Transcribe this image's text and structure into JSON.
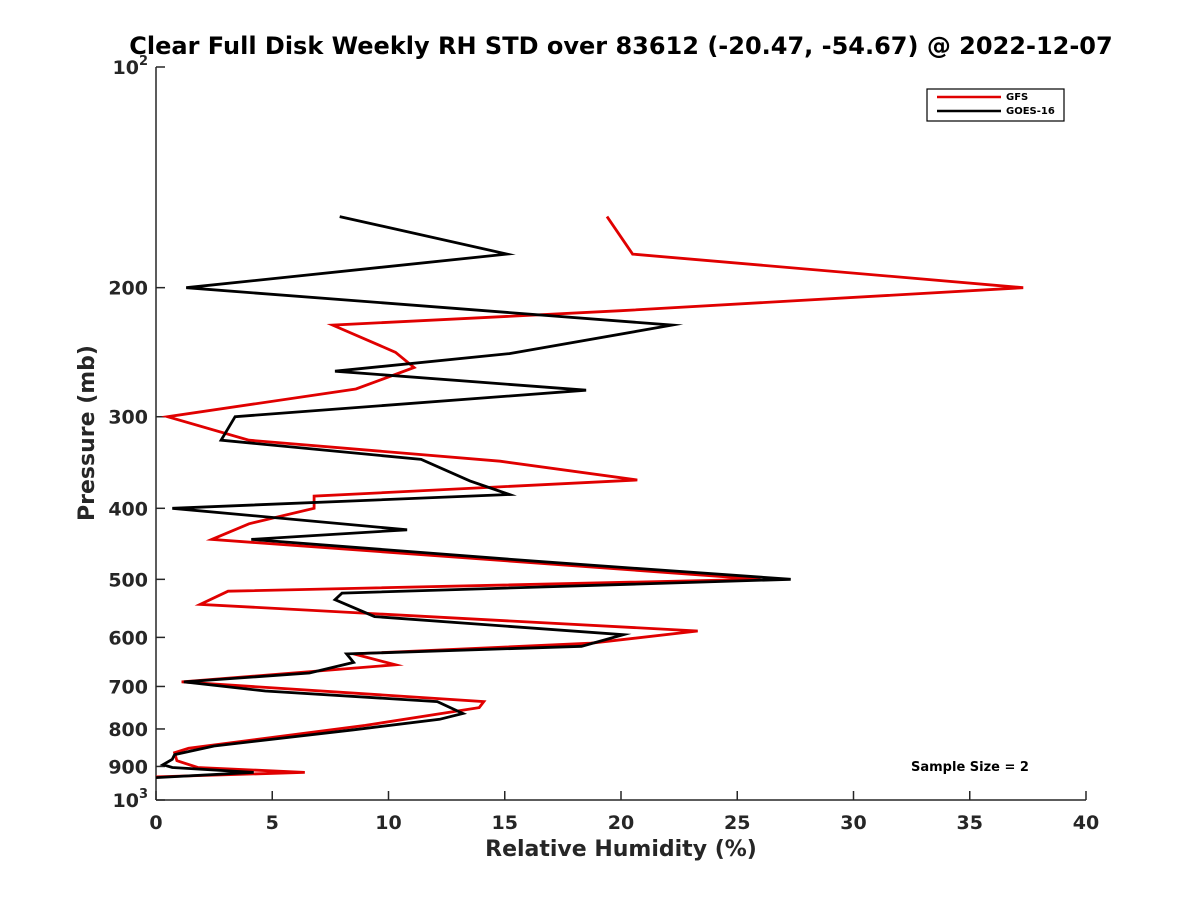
{
  "chart_data": {
    "type": "line",
    "title": "Clear Full Disk Weekly RH STD over 83612 (-20.47, -54.67) @ 2022-12-07",
    "xlabel": "Relative Humidity (%)",
    "ylabel": "Pressure (mb)",
    "xlim": [
      0,
      40
    ],
    "ylim": [
      100,
      1000
    ],
    "yscale": "log",
    "yreversed": true,
    "x_ticks": [
      "0",
      "5",
      "10",
      "15",
      "20",
      "25",
      "30",
      "35",
      "40"
    ],
    "y_ticks": [
      {
        "value": 100,
        "base": "10",
        "exp": "2"
      },
      {
        "value": 200,
        "label": "200"
      },
      {
        "value": 300,
        "label": "300"
      },
      {
        "value": 400,
        "label": "400"
      },
      {
        "value": 500,
        "label": "500"
      },
      {
        "value": 600,
        "label": "600"
      },
      {
        "value": 700,
        "label": "700"
      },
      {
        "value": 800,
        "label": "800"
      },
      {
        "value": 900,
        "label": "900"
      },
      {
        "value": 1000,
        "base": "10",
        "exp": "3"
      }
    ],
    "grid": false,
    "legend_position": "top-right",
    "annotation": "Sample Size = 2",
    "series": [
      {
        "name": "GFS",
        "color": "#e00000",
        "points": [
          [
            19.4,
            160
          ],
          [
            20.5,
            180
          ],
          [
            37.3,
            200
          ],
          [
            20.0,
            215
          ],
          [
            7.6,
            225
          ],
          [
            10.3,
            245
          ],
          [
            11.1,
            257
          ],
          [
            8.6,
            275
          ],
          [
            0.5,
            300
          ],
          [
            4.0,
            323
          ],
          [
            14.8,
            345
          ],
          [
            20.7,
            366
          ],
          [
            6.8,
            385
          ],
          [
            6.8,
            400
          ],
          [
            4.0,
            420
          ],
          [
            2.4,
            441
          ],
          [
            26.0,
            500
          ],
          [
            3.1,
            519
          ],
          [
            1.9,
            541
          ],
          [
            23.3,
            588
          ],
          [
            18.7,
            611
          ],
          [
            8.5,
            632
          ],
          [
            10.3,
            654
          ],
          [
            1.1,
            690
          ],
          [
            14.1,
            734
          ],
          [
            13.9,
            748
          ],
          [
            9.0,
            791
          ],
          [
            1.4,
            850
          ],
          [
            0.8,
            862
          ],
          [
            0.9,
            884
          ],
          [
            1.8,
            903
          ],
          [
            6.4,
            917
          ],
          [
            0.0,
            930
          ]
        ]
      },
      {
        "name": "GOES-16",
        "color": "#000000",
        "points": [
          [
            7.9,
            160
          ],
          [
            15.1,
            180
          ],
          [
            1.3,
            200
          ],
          [
            22.2,
            225
          ],
          [
            15.2,
            246
          ],
          [
            7.7,
            260
          ],
          [
            18.5,
            276
          ],
          [
            3.4,
            300
          ],
          [
            2.8,
            323
          ],
          [
            11.4,
            343
          ],
          [
            13.5,
            367
          ],
          [
            15.2,
            383
          ],
          [
            0.7,
            400
          ],
          [
            10.8,
            428
          ],
          [
            4.1,
            441
          ],
          [
            16.6,
            473
          ],
          [
            27.3,
            500
          ],
          [
            8.0,
            522
          ],
          [
            7.7,
            533
          ],
          [
            9.4,
            562
          ],
          [
            20.1,
            595
          ],
          [
            18.3,
            617
          ],
          [
            8.2,
            632
          ],
          [
            8.5,
            649
          ],
          [
            6.6,
            671
          ],
          [
            1.2,
            690
          ],
          [
            4.7,
            710
          ],
          [
            12.1,
            734
          ],
          [
            13.2,
            762
          ],
          [
            12.2,
            776
          ],
          [
            8.5,
            802
          ],
          [
            2.5,
            844
          ],
          [
            0.8,
            867
          ],
          [
            0.7,
            880
          ],
          [
            0.3,
            895
          ],
          [
            0.7,
            903
          ],
          [
            4.2,
            917
          ],
          [
            0.0,
            932
          ]
        ]
      }
    ]
  }
}
